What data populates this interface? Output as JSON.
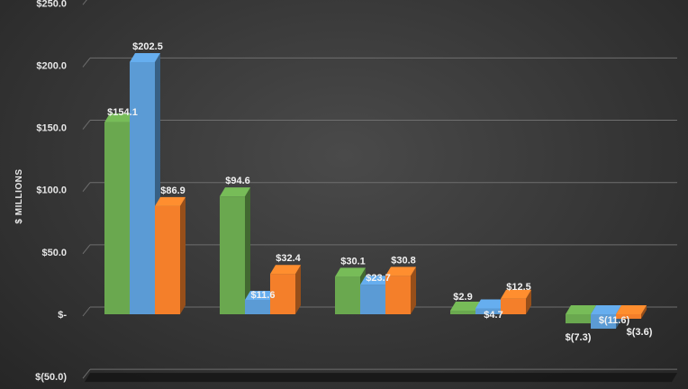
{
  "chart_data": {
    "type": "bar",
    "ylabel": "$ MILLIONS",
    "ylim": [
      -50,
      250
    ],
    "yticks": [
      250,
      200,
      150,
      100,
      50,
      0,
      -50
    ],
    "ytick_labels": [
      "$250.0",
      "$200.0",
      "$150.0",
      "$100.0",
      "$50.0",
      "$-",
      "$(50.0)"
    ],
    "grid": true,
    "categories": [
      "",
      "",
      "",
      "",
      ""
    ],
    "series": [
      {
        "color": "#6aa84f",
        "values": [
          154.1,
          94.6,
          30.1,
          2.9,
          -7.3
        ],
        "labels": [
          "$154.1",
          "$94.6",
          "$30.1",
          "$2.9",
          "$(7.3)"
        ]
      },
      {
        "color": "#5b9bd5",
        "values": [
          202.5,
          11.6,
          23.7,
          4.7,
          -11.6
        ],
        "labels": [
          "$202.5",
          "$11.6",
          "$23.7",
          "$4.7",
          "$(11.6)"
        ]
      },
      {
        "color": "#f47f2a",
        "values": [
          86.9,
          32.4,
          30.8,
          12.5,
          -3.6
        ],
        "labels": [
          "$86.9",
          "$32.4",
          "$30.8",
          "$12.5",
          "$(3.6)"
        ]
      }
    ]
  }
}
